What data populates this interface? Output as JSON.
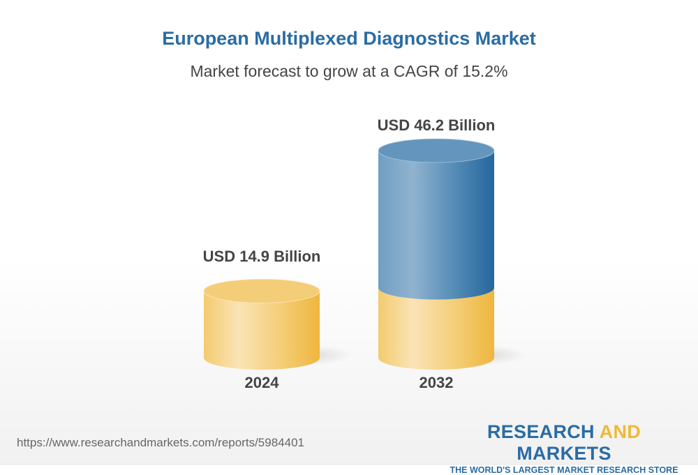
{
  "title": "European Multiplexed Diagnostics Market",
  "subtitle": "Market forecast to grow at a CAGR of 15.2%",
  "chart_data": {
    "type": "bar",
    "style": "3d-cylinder",
    "categories": [
      "2024",
      "2032"
    ],
    "values": [
      14.9,
      46.2
    ],
    "data_labels": [
      "USD 14.9 Billion",
      "USD 46.2 Billion"
    ],
    "unit": "USD Billion",
    "cagr": "15.2%",
    "colors": {
      "base": "#f2c35a",
      "growth": "#2a6ca3"
    }
  },
  "footer": {
    "url": "https://www.researchandmarkets.com/reports/5984401",
    "logo": {
      "part1": "RESEARCH ",
      "part2": "AND",
      "part3": " MARKETS",
      "tagline": "THE WORLD'S LARGEST MARKET RESEARCH STORE"
    }
  }
}
